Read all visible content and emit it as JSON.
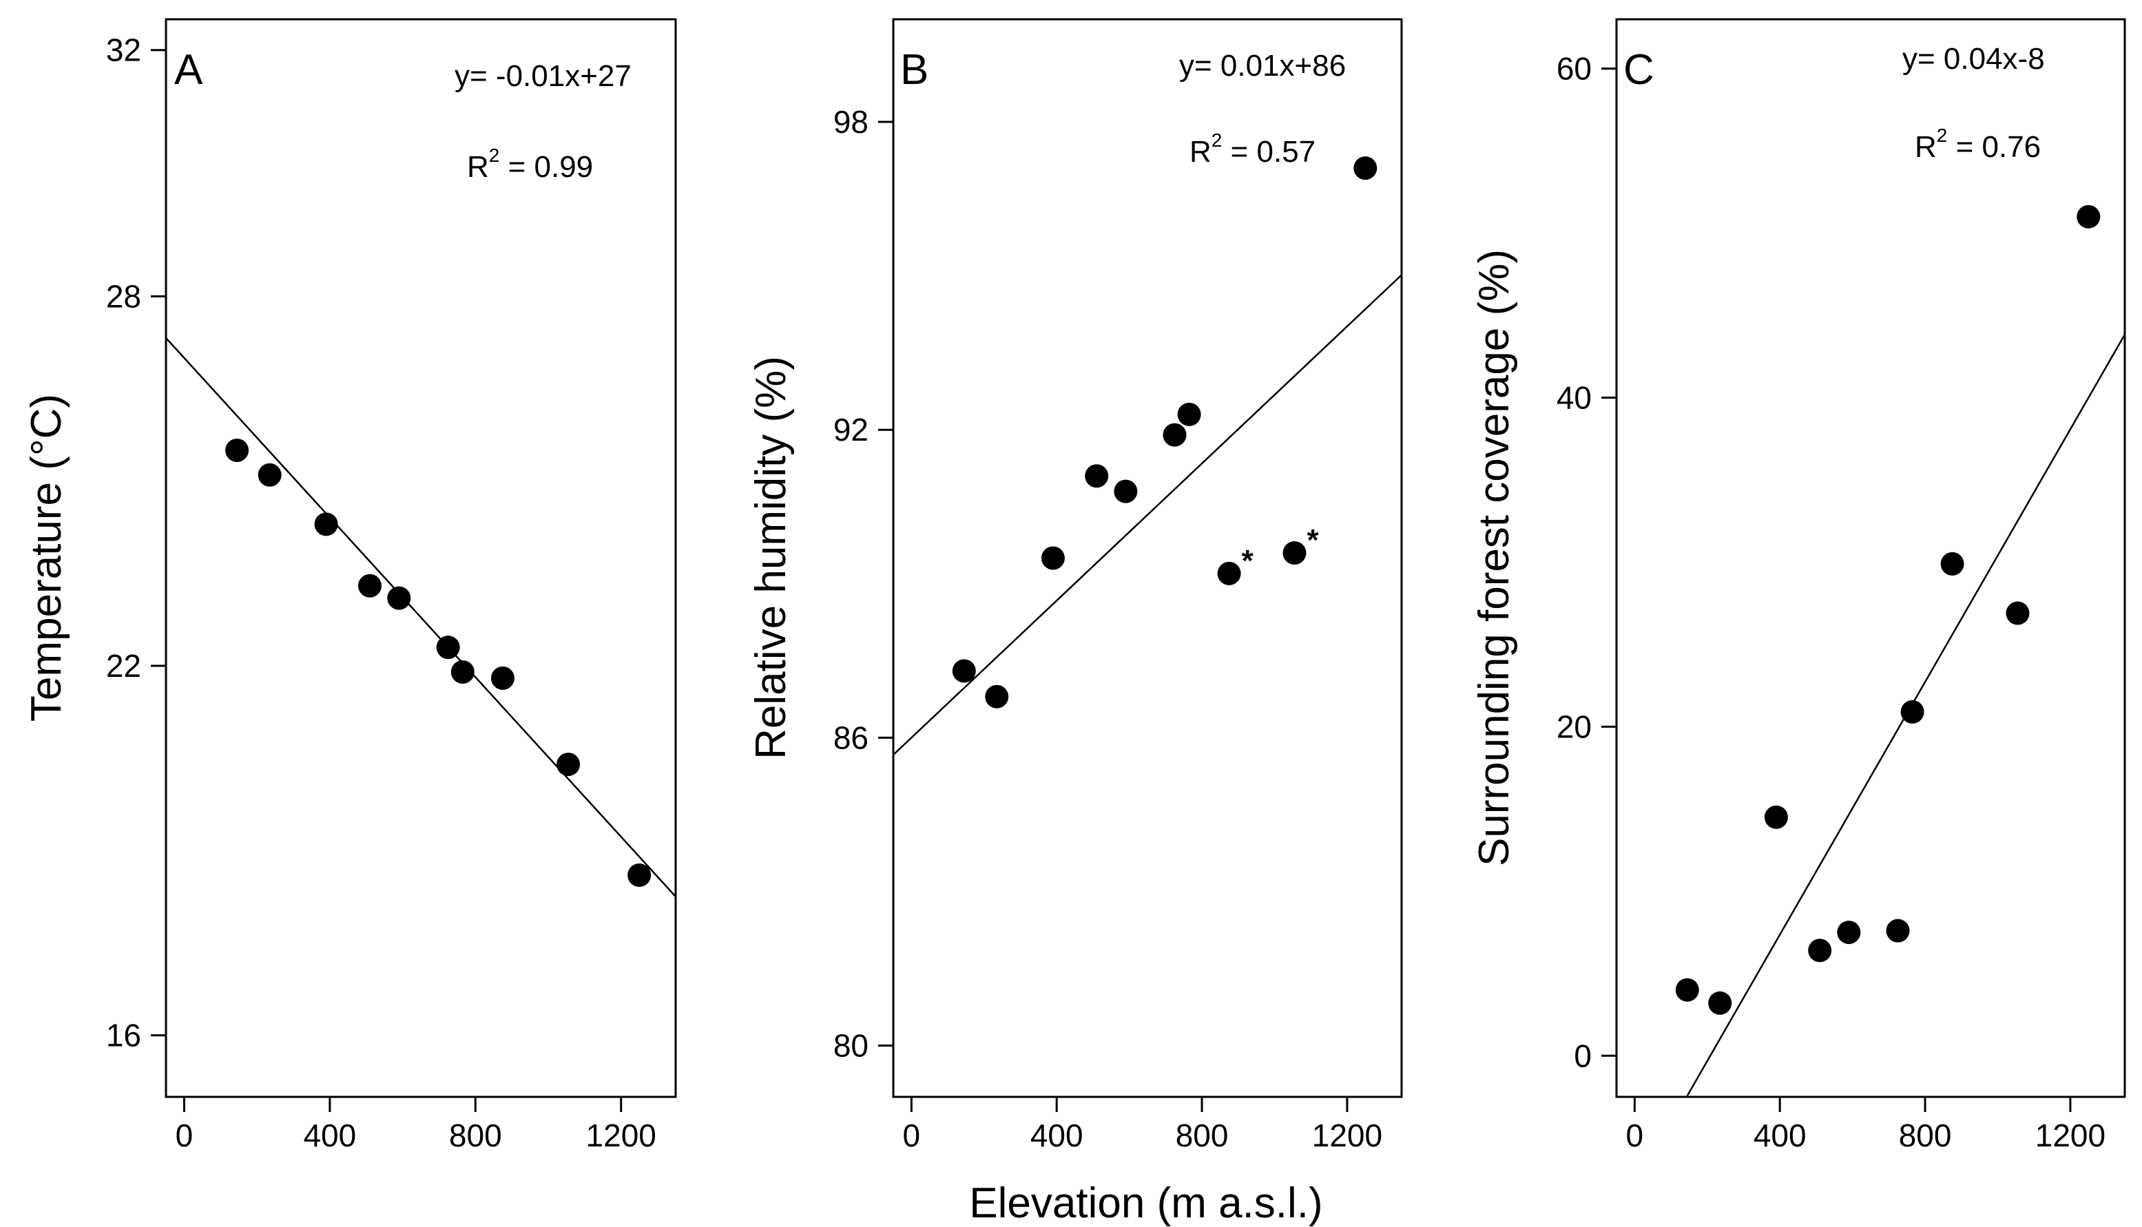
{
  "figure": {
    "x_axis_title": "Elevation (m a.s.l.)"
  },
  "chart_data": [
    {
      "type": "scatter",
      "panel_label": "A",
      "xlabel": "",
      "ylabel": "Temperature (°C)",
      "xlim": [
        -50,
        1350
      ],
      "ylim": [
        15,
        32.5
      ],
      "xticks": [
        0,
        400,
        800,
        1200
      ],
      "yticks": [
        16,
        22,
        28,
        32
      ],
      "x": [
        145,
        235,
        390,
        510,
        590,
        725,
        765,
        875,
        1055,
        1250
      ],
      "y": [
        25.5,
        25.1,
        24.3,
        23.3,
        23.1,
        22.3,
        21.9,
        21.8,
        20.4,
        18.6
      ],
      "fit": {
        "intercept": 27,
        "slope": -0.00648
      },
      "equation": "y= -0.01x+27",
      "r2_label": "R",
      "r2_exp": "2",
      "r2_value": " = 0.99",
      "flagged_x": []
    },
    {
      "type": "scatter",
      "panel_label": "B",
      "xlabel": "Elevation (m a.s.l.)",
      "ylabel": "Relative humidity (%)",
      "xlim": [
        -50,
        1350
      ],
      "ylim": [
        79,
        100
      ],
      "xticks": [
        0,
        400,
        800,
        1200
      ],
      "yticks": [
        80,
        86,
        92,
        98
      ],
      "x": [
        145,
        235,
        390,
        510,
        590,
        725,
        765,
        875,
        1055,
        1250
      ],
      "y": [
        87.3,
        86.8,
        89.5,
        91.1,
        90.8,
        91.9,
        92.3,
        89.2,
        89.6,
        97.1
      ],
      "fit": {
        "intercept": 86,
        "slope": 0.00668
      },
      "equation": "y= 0.01x+86",
      "r2_label": "R",
      "r2_exp": "2",
      "r2_value": " = 0.57",
      "flagged_x": [
        875,
        1055
      ],
      "flag_symbol": "*"
    },
    {
      "type": "scatter",
      "panel_label": "C",
      "xlabel": "",
      "ylabel": "Surrounding forest coverage (%)",
      "xlim": [
        -50,
        1350
      ],
      "ylim": [
        -2.5,
        63
      ],
      "xticks": [
        0,
        400,
        800,
        1200
      ],
      "yticks": [
        0,
        20,
        40,
        60
      ],
      "x": [
        145,
        235,
        390,
        510,
        590,
        725,
        765,
        875,
        1055,
        1250
      ],
      "y": [
        4,
        3.2,
        14.5,
        6.4,
        7.5,
        7.6,
        20.9,
        29.9,
        26.9,
        51
      ],
      "fit": {
        "intercept": -8,
        "slope": 0.0384
      },
      "equation": "y= 0.04x-8",
      "r2_label": "R",
      "r2_exp": "2",
      "r2_value": " = 0.76",
      "flagged_x": []
    }
  ]
}
